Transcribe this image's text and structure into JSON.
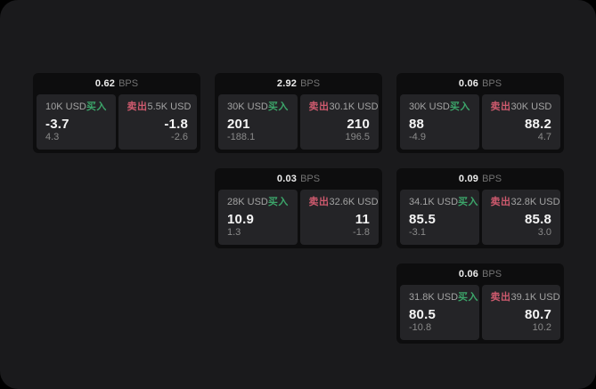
{
  "page": {
    "bps_unit": "BPS",
    "buy_label": "买入",
    "sell_label": "卖出"
  },
  "colors": {
    "page_bg": "#1a1a1c",
    "card_bg": "#0d0d0e",
    "panel_bg": "#242427",
    "buy": "#3ca56a",
    "sell": "#ce5a6e"
  },
  "cards": [
    {
      "row": 1,
      "col": 1,
      "bps": "0.62",
      "buy": {
        "amount": "10K USD",
        "value": "-3.7",
        "delta": "4.3"
      },
      "sell": {
        "amount": "5.5K USD",
        "value": "-1.8",
        "delta": "-2.6"
      }
    },
    {
      "row": 1,
      "col": 2,
      "bps": "2.92",
      "buy": {
        "amount": "30K USD",
        "value": "201",
        "delta": "-188.1"
      },
      "sell": {
        "amount": "30.1K USD",
        "value": "210",
        "delta": "196.5"
      }
    },
    {
      "row": 1,
      "col": 3,
      "bps": "0.06",
      "buy": {
        "amount": "30K USD",
        "value": "88",
        "delta": "-4.9"
      },
      "sell": {
        "amount": "30K USD",
        "value": "88.2",
        "delta": "4.7"
      }
    },
    {
      "row": 2,
      "col": 2,
      "bps": "0.03",
      "buy": {
        "amount": "28K USD",
        "value": "10.9",
        "delta": "1.3"
      },
      "sell": {
        "amount": "32.6K USD",
        "value": "11",
        "delta": "-1.8"
      }
    },
    {
      "row": 2,
      "col": 3,
      "bps": "0.09",
      "buy": {
        "amount": "34.1K USD",
        "value": "85.5",
        "delta": "-3.1"
      },
      "sell": {
        "amount": "32.8K USD",
        "value": "85.8",
        "delta": "3.0"
      }
    },
    {
      "row": 3,
      "col": 3,
      "bps": "0.06",
      "buy": {
        "amount": "31.8K USD",
        "value": "80.5",
        "delta": "-10.8"
      },
      "sell": {
        "amount": "39.1K USD",
        "value": "80.7",
        "delta": "10.2"
      }
    }
  ]
}
